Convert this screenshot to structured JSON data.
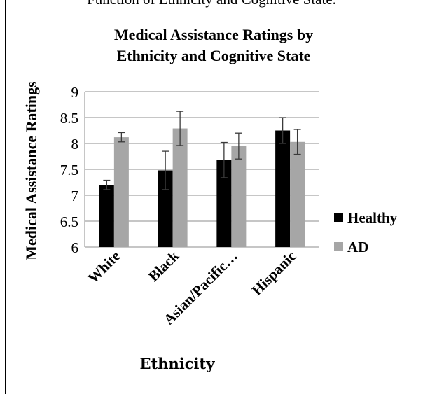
{
  "caption_fragment": "Function of Ethnicity and Cognitive State.",
  "chart_data": {
    "type": "bar",
    "title": "Medical Assistance Ratings by Ethnicity and Cognitive State",
    "title_lines": [
      "Medical Assistance Ratings by",
      "Ethnicity and Cognitive State"
    ],
    "xlabel": "Ethnicity",
    "ylabel": "Medical Assistance Ratings",
    "categories": [
      "White",
      "Black",
      "Asian/Pacific…",
      "Hispanic"
    ],
    "ylim": [
      6,
      9
    ],
    "yticks": [
      6,
      6.5,
      7,
      7.5,
      8,
      8.5,
      9
    ],
    "ytick_labels": [
      "6",
      "6.5",
      "7",
      "7.5",
      "8",
      "8.5",
      "9"
    ],
    "grid": true,
    "legend": "right",
    "series": [
      {
        "name": "Healthy",
        "color": "#000000",
        "values": [
          7.2,
          7.48,
          7.68,
          8.25
        ],
        "errors": [
          0.09,
          0.37,
          0.34,
          0.25
        ]
      },
      {
        "name": "AD",
        "color": "#a6a6a6",
        "values": [
          8.12,
          8.29,
          7.95,
          8.03
        ],
        "errors": [
          0.09,
          0.33,
          0.25,
          0.24
        ]
      }
    ]
  }
}
